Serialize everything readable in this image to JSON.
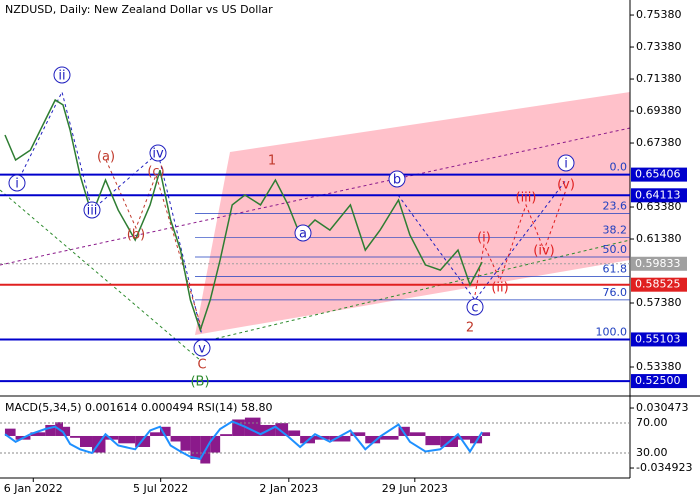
{
  "chart_data": {
    "type": "line",
    "title": "NZDUSD, Daily:  New Zealand Dollar vs US Dollar",
    "color": "#2e7d32",
    "x": [
      -40,
      -25,
      -4,
      17,
      31,
      42,
      52,
      66,
      83,
      102,
      120,
      144,
      165,
      179,
      194,
      208,
      222,
      236,
      250,
      264,
      281,
      299,
      321,
      342,
      360,
      377,
      398,
      419,
      448,
      469,
      490,
      516,
      532,
      554,
      575,
      600,
      617,
      634
    ],
    "values": [
      0.6788,
      0.6632,
      0.6694,
      0.6882,
      0.7007,
      0.6976,
      0.6819,
      0.6538,
      0.6288,
      0.6507,
      0.6319,
      0.6132,
      0.6351,
      0.6569,
      0.6257,
      0.6069,
      0.5757,
      0.5569,
      0.5757,
      0.6007,
      0.6351,
      0.6413,
      0.6351,
      0.6507,
      0.6351,
      0.6163,
      0.6257,
      0.6194,
      0.6351,
      0.6069,
      0.6194,
      0.6382,
      0.6163,
      0.5976,
      0.5944,
      0.6069,
      0.5851,
      0.5994
    ],
    "xlim": [
      -47,
      843
    ],
    "xticks": [
      {
        "value": 0,
        "label": "6 Jan 2022"
      },
      {
        "value": 180,
        "label": "5 Jul 2022"
      },
      {
        "value": 361,
        "label": "2 Jan 2023"
      },
      {
        "value": 539,
        "label": "29 Jun 2023"
      }
    ],
    "ylim": [
      0.5163,
      0.7632
    ],
    "yticks": [
      {
        "value": 0.7538,
        "label": "0.75380"
      },
      {
        "value": 0.7338,
        "label": "0.73380"
      },
      {
        "value": 0.7138,
        "label": "0.71380"
      },
      {
        "value": 0.6938,
        "label": "0.69380"
      },
      {
        "value": 0.6738,
        "label": "0.67380"
      },
      {
        "value": 0.6338,
        "label": "0.63380"
      },
      {
        "value": 0.6138,
        "label": "0.61380"
      },
      {
        "value": 0.5738,
        "label": "0.57380"
      },
      {
        "value": 0.5338,
        "label": "0.53380"
      }
    ],
    "levels": [
      {
        "value": 0.65406,
        "color": "#0000cc"
      },
      {
        "value": 0.64113,
        "color": "#0000cc"
      },
      {
        "value": 0.59833,
        "color": "#a0a0a0"
      },
      {
        "value": 0.58525,
        "color": "#e02020"
      },
      {
        "value": 0.55103,
        "color": "#0000cc"
      },
      {
        "value": 0.525,
        "label": "0.52500",
        "color": "#0000cc"
      }
    ],
    "fib": {
      "labels": [
        "0.0",
        "23.6",
        "38.2",
        "50.0",
        "61.8",
        "76.0",
        "100.0"
      ],
      "values": [
        0.65406,
        0.62974,
        0.6147,
        0.60255,
        0.59039,
        0.57576,
        0.55103
      ],
      "color": "#1f3fbf"
    },
    "wave_labels": [
      {
        "text": "i",
        "color": "#1f1fbf",
        "circled": true
      },
      {
        "text": "ii",
        "color": "#1f1fbf",
        "circled": true
      },
      {
        "text": "iii",
        "color": "#1f1fbf",
        "circled": true
      },
      {
        "text": "iv",
        "color": "#1f1fbf",
        "circled": true
      },
      {
        "text": "v",
        "color": "#1f1fbf",
        "circled": true
      },
      {
        "text": "(a)",
        "color": "#c0392b",
        "circled": false
      },
      {
        "text": "(b)",
        "color": "#c0392b",
        "circled": false
      },
      {
        "text": "(c)",
        "color": "#c0392b",
        "circled": false
      },
      {
        "text": "C",
        "color": "#c0392b",
        "circled": false
      },
      {
        "text": "(B)",
        "color": "#2e8b2e",
        "circled": false
      },
      {
        "text": "1",
        "color": "#c0392b",
        "circled": false
      },
      {
        "text": "a",
        "color": "#1f1fbf",
        "circled": true
      },
      {
        "text": "b",
        "color": "#1f1fbf",
        "circled": true
      },
      {
        "text": "c",
        "color": "#1f1fbf",
        "circled": true
      },
      {
        "text": "2",
        "color": "#c0392b",
        "circled": false
      },
      {
        "text": "(i)",
        "color": "#e02020",
        "circled": false
      },
      {
        "text": "(ii)",
        "color": "#e02020",
        "circled": false
      },
      {
        "text": "(iii)",
        "color": "#e02020",
        "circled": false
      },
      {
        "text": "(iv)",
        "color": "#e02020",
        "circled": false
      },
      {
        "text": "(v)",
        "color": "#e02020",
        "circled": false
      },
      {
        "text": "i",
        "color": "#1f1fbf",
        "circled": true
      }
    ],
    "indicator": {
      "label": "MACD(5,34,5) 0.001614 0.000494 RSI(14) 58.80",
      "macd_color": "#8b1a8b",
      "rsi_color": "#1e90ff",
      "macd_values": [
        0.008,
        -0.004,
        0.004,
        0.012,
        0.015,
        0.01,
        -0.002,
        -0.012,
        -0.018,
        -0.004,
        -0.008,
        -0.012,
        0.004,
        0.01,
        -0.006,
        -0.016,
        -0.025,
        -0.03,
        -0.018,
        0.002,
        0.018,
        0.02,
        0.012,
        0.014,
        0.006,
        -0.008,
        -0.004,
        -0.006,
        0.004,
        -0.008,
        -0.004,
        0.01,
        0.004,
        -0.01,
        -0.012,
        -0.004,
        -0.008,
        0.004
      ],
      "rsi_values": [
        55,
        45,
        55,
        62,
        65,
        58,
        42,
        35,
        30,
        55,
        40,
        35,
        60,
        65,
        40,
        32,
        25,
        22,
        45,
        62,
        72,
        65,
        55,
        65,
        52,
        38,
        55,
        45,
        60,
        35,
        52,
        68,
        45,
        32,
        35,
        55,
        32,
        58
      ],
      "macd_lim": [
        -0.0458,
        0.0414
      ],
      "macd_ticks": [
        0.030473,
        -0.034923
      ],
      "rsi_lim": [
        -3.3,
        103.3
      ],
      "rsi_ticks": [
        {
          "value": 70,
          "label": "70.00"
        },
        {
          "value": 30,
          "label": "30.00"
        }
      ]
    }
  }
}
